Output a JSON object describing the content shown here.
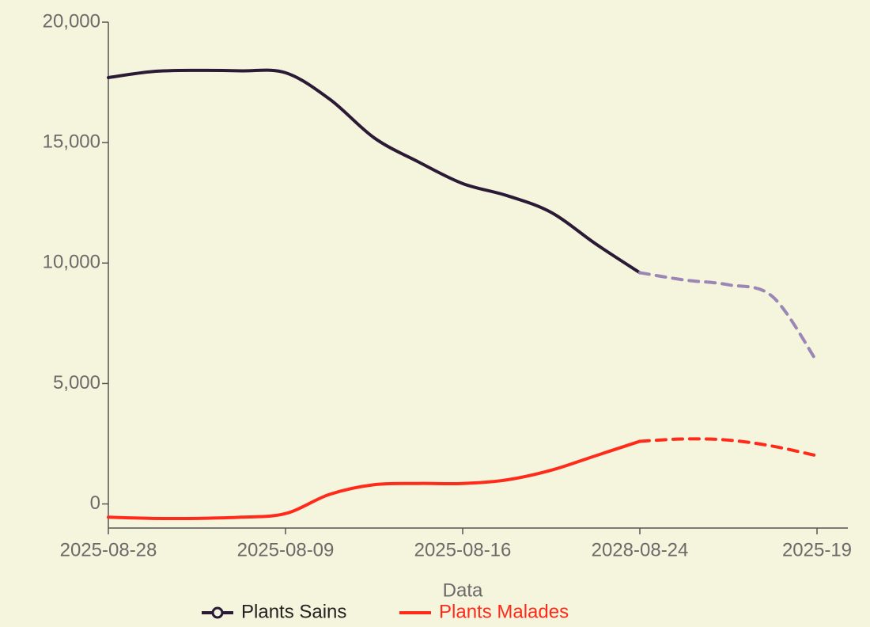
{
  "chart_data": {
    "type": "line",
    "categories": [
      "2025-08-28",
      null,
      null,
      null,
      "2025-08-09",
      null,
      null,
      null,
      "2025-08-16",
      null,
      null,
      null,
      "2028-08-24",
      null,
      null,
      null,
      "2025-19"
    ],
    "series": [
      {
        "name": "Plants Sains",
        "color": "#2a1a35",
        "forecast_color": "#9b86b5",
        "forecast_from": 12,
        "values": [
          17700,
          17950,
          18000,
          17980,
          17900,
          16800,
          15200,
          14200,
          13300,
          12800,
          12100,
          10800,
          9600,
          9300,
          9100,
          8600,
          5900
        ]
      },
      {
        "name": "Plants Malades",
        "color": "#ff2a1a",
        "forecast_color": "#ff2a1a",
        "forecast_from": 12,
        "values": [
          -550,
          -600,
          -600,
          -550,
          -400,
          400,
          800,
          850,
          850,
          1000,
          1400,
          2000,
          2600,
          2700,
          2650,
          2400,
          2000
        ]
      }
    ],
    "legend_title": "Data",
    "ylim": [
      -1000,
      20000
    ],
    "yticks": [
      0,
      {
        "value": 5000,
        "label": "5,000"
      },
      {
        "value": 10000,
        "label": "10,000"
      },
      {
        "value": 15000,
        "label": "15,000"
      },
      {
        "value": 20000,
        "label": "20,000"
      }
    ],
    "grid": false,
    "legend": "bottom"
  }
}
